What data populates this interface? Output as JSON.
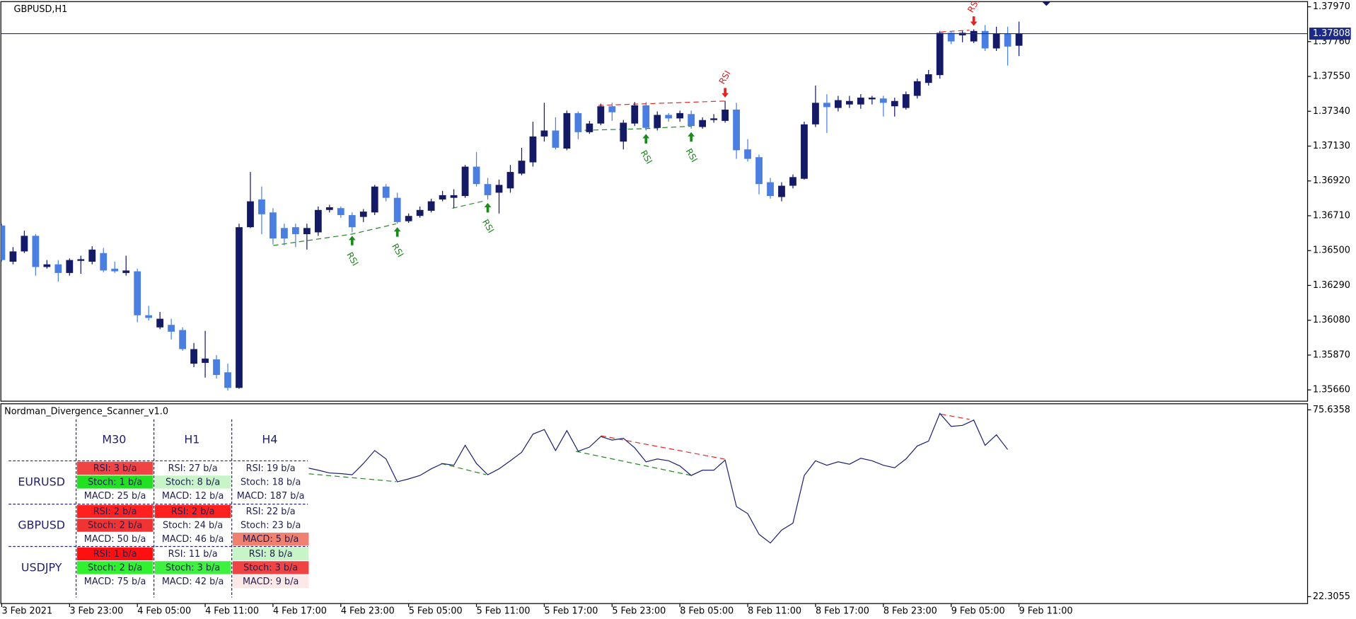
{
  "chart_data": [
    {
      "type": "candlestick",
      "title": "GBPUSD,H1",
      "categories": [
        "3 Feb 2021",
        null,
        null,
        null,
        null,
        null,
        "3 Feb 23:00",
        null,
        null,
        null,
        null,
        null,
        "4 Feb 05:00",
        null,
        null,
        null,
        null,
        null,
        "4 Feb 11:00",
        null,
        null,
        null,
        null,
        null,
        "4 Feb 17:00",
        null,
        null,
        null,
        null,
        null,
        "4 Feb 23:00",
        null,
        null,
        null,
        null,
        null,
        "5 Feb 05:00",
        null,
        null,
        null,
        null,
        null,
        "5 Feb 11:00",
        null,
        null,
        null,
        null,
        null,
        "5 Feb 17:00",
        null,
        null,
        null,
        null,
        null,
        "5 Feb 23:00",
        null,
        null,
        null,
        null,
        null,
        "8 Feb 05:00",
        null,
        null,
        null,
        null,
        null,
        "8 Feb 11:00",
        null,
        null,
        null,
        null,
        null,
        "8 Feb 17:00",
        null,
        null,
        null,
        null,
        null,
        "8 Feb 23:00",
        null,
        null,
        null,
        null,
        null,
        "9 Feb 05:00",
        null,
        null,
        null,
        null,
        null,
        "9 Feb 11:00"
      ],
      "open": [
        1.36651,
        1.36433,
        1.36495,
        1.36589,
        1.36401,
        1.36417,
        1.36365,
        1.36438,
        1.36433,
        1.36485,
        1.36391,
        1.36365,
        1.36375,
        1.3611,
        1.36037,
        1.36052,
        1.36021,
        1.35818,
        1.35823,
        1.35844,
        1.35766,
        1.35672,
        1.36641,
        1.36808,
        1.3673,
        1.36636,
        1.36641,
        1.36599,
        1.3661,
        1.36745,
        1.36756,
        1.36714,
        1.36703,
        1.3673,
        1.36886,
        1.36818,
        1.36677,
        1.36709,
        1.3674,
        1.36808,
        1.36818,
        1.36829,
        1.37006,
        1.36901,
        1.36849,
        1.36875,
        1.36964,
        1.37032,
        1.37188,
        1.37224,
        1.37115,
        1.37329,
        1.37214,
        1.37266,
        1.3737,
        1.37157,
        1.37266,
        1.37376,
        1.3724,
        1.37318,
        1.37297,
        1.37323,
        1.37245,
        1.37287,
        1.37282,
        1.3735,
        1.3711,
        1.37063,
        1.36912,
        1.36823,
        1.36891,
        1.36933,
        1.37261,
        1.37391,
        1.3736,
        1.37381,
        1.37381,
        1.37412,
        1.37417,
        1.3737,
        1.3736,
        1.37433,
        1.37511,
        1.37558,
        1.37813,
        1.37798,
        1.37761,
        1.37824,
        1.37719,
        1.37808,
        1.37735
      ],
      "high": [
        1.36662,
        1.36521,
        1.3662,
        1.36599,
        1.36443,
        1.36443,
        1.36453,
        1.36469,
        1.36526,
        1.36516,
        1.36433,
        1.36469,
        1.36391,
        1.36167,
        1.3613,
        1.36089,
        1.36037,
        1.35943,
        1.36016,
        1.3587,
        1.35818,
        1.36662,
        1.36974,
        1.36886,
        1.36756,
        1.36662,
        1.36662,
        1.36662,
        1.36766,
        1.36776,
        1.36766,
        1.3673,
        1.3675,
        1.36896,
        1.36901,
        1.36849,
        1.36724,
        1.36766,
        1.36813,
        1.3686,
        1.3687,
        1.37016,
        1.37094,
        1.36938,
        1.36928,
        1.37016,
        1.3712,
        1.37277,
        1.37391,
        1.37303,
        1.37344,
        1.37339,
        1.37282,
        1.37386,
        1.37391,
        1.37287,
        1.37396,
        1.37396,
        1.37339,
        1.37329,
        1.37344,
        1.37344,
        1.37303,
        1.37323,
        1.37402,
        1.37391,
        1.37172,
        1.37079,
        1.36938,
        1.36912,
        1.36959,
        1.37277,
        1.37495,
        1.37443,
        1.37433,
        1.37433,
        1.37443,
        1.37433,
        1.37433,
        1.37422,
        1.37459,
        1.37537,
        1.37589,
        1.37824,
        1.37824,
        1.37824,
        1.37834,
        1.3786,
        1.3785,
        1.3785,
        1.37881
      ],
      "low": [
        1.36433,
        1.36417,
        1.36485,
        1.36349,
        1.36391,
        1.36313,
        1.36349,
        1.3636,
        1.36417,
        1.3637,
        1.36365,
        1.36349,
        1.36068,
        1.36078,
        1.36026,
        1.35964,
        1.35896,
        1.35797,
        1.35734,
        1.35729,
        1.35656,
        1.35667,
        1.36636,
        1.36599,
        1.36537,
        1.36532,
        1.36521,
        1.36506,
        1.36589,
        1.3673,
        1.36698,
        1.3661,
        1.36672,
        1.36714,
        1.36797,
        1.36662,
        1.36667,
        1.36698,
        1.3673,
        1.36797,
        1.36756,
        1.36818,
        1.36886,
        1.36808,
        1.36724,
        1.36849,
        1.36954,
        1.37006,
        1.37157,
        1.3711,
        1.37105,
        1.37172,
        1.37204,
        1.37256,
        1.37282,
        1.3711,
        1.37251,
        1.37224,
        1.37224,
        1.37277,
        1.37277,
        1.37235,
        1.37235,
        1.37271,
        1.37271,
        1.37053,
        1.37037,
        1.36839,
        1.36813,
        1.36797,
        1.36875,
        1.36928,
        1.37245,
        1.37209,
        1.37339,
        1.3736,
        1.37355,
        1.37381,
        1.37308,
        1.37308,
        1.3735,
        1.37417,
        1.37495,
        1.37537,
        1.37745,
        1.37756,
        1.37751,
        1.37704,
        1.37704,
        1.37615,
        1.37673
      ],
      "close": [
        1.36443,
        1.36495,
        1.36589,
        1.36401,
        1.36417,
        1.36365,
        1.36443,
        1.36448,
        1.36506,
        1.3638,
        1.36375,
        1.3638,
        1.3611,
        1.36094,
        1.36089,
        1.36011,
        1.35906,
        1.35906,
        1.35849,
        1.3575,
        1.35672,
        1.36641,
        1.36797,
        1.36719,
        1.36573,
        1.36573,
        1.36599,
        1.36636,
        1.36745,
        1.36761,
        1.36714,
        1.36641,
        1.36735,
        1.36886,
        1.36818,
        1.36672,
        1.36709,
        1.36745,
        1.36797,
        1.36834,
        1.36834,
        1.37006,
        1.36901,
        1.36834,
        1.36896,
        1.36974,
        1.37042,
        1.37188,
        1.37224,
        1.3712,
        1.37329,
        1.37214,
        1.37266,
        1.3737,
        1.37334,
        1.37271,
        1.37376,
        1.3724,
        1.37318,
        1.37297,
        1.37329,
        1.37251,
        1.37287,
        1.37297,
        1.3735,
        1.37105,
        1.37053,
        1.36901,
        1.36829,
        1.36891,
        1.36943,
        1.37261,
        1.37391,
        1.37365,
        1.37407,
        1.37402,
        1.37422,
        1.37422,
        1.37391,
        1.37402,
        1.37443,
        1.37521,
        1.37563,
        1.37813,
        1.37761,
        1.37813,
        1.37824,
        1.37719,
        1.37808,
        1.3773,
        1.37808
      ],
      "up_color": "#141a66",
      "down_color": "#4a7ee0",
      "ylim": [
        1.35592,
        1.37996
      ],
      "yticks": [
        {
          "value": 1.3797,
          "label": "1.37970"
        },
        {
          "value": 1.3776,
          "label": "1.37760"
        },
        {
          "value": 1.3755,
          "label": "1.37550"
        },
        {
          "value": 1.3734,
          "label": "1.37340"
        },
        {
          "value": 1.3713,
          "label": "1.37130"
        },
        {
          "value": 1.3692,
          "label": "1.36920"
        },
        {
          "value": 1.3671,
          "label": "1.36710"
        },
        {
          "value": 1.365,
          "label": "1.36500"
        },
        {
          "value": 1.3629,
          "label": "1.36290"
        },
        {
          "value": 1.3608,
          "label": "1.36080"
        },
        {
          "value": 1.3587,
          "label": "1.35870"
        },
        {
          "value": 1.3566,
          "label": "1.35660"
        }
      ],
      "last_price": 1.37808,
      "price_line_color": "#1c2a8c",
      "annotations": [
        "RSI",
        "RSI",
        "RSI",
        "RSI",
        "RSI",
        "RSI",
        "RSI"
      ]
    },
    {
      "type": "line",
      "title": "Nordman_Divergence_Scanner_v1.0",
      "color": "#1c2270",
      "values": [
        null,
        null,
        null,
        null,
        null,
        null,
        null,
        null,
        null,
        null,
        null,
        null,
        null,
        null,
        null,
        null,
        null,
        null,
        null,
        null,
        null,
        null,
        null,
        null,
        null,
        null,
        null,
        59.1,
        58.4,
        57.6,
        57.4,
        57.1,
        60.3,
        64.0,
        61.6,
        55.1,
        55.9,
        56.9,
        58.8,
        60.3,
        59.8,
        65.5,
        60.3,
        57.1,
        58.8,
        61.1,
        63.5,
        68.7,
        70.0,
        64.0,
        69.7,
        63.8,
        65.0,
        68.0,
        67.0,
        67.5,
        64.8,
        60.8,
        61.6,
        61.1,
        59.6,
        56.9,
        58.4,
        58.4,
        61.3,
        48.0,
        46.0,
        40.1,
        37.6,
        41.3,
        43.3,
        56.9,
        61.1,
        59.8,
        60.8,
        60.1,
        61.8,
        61.1,
        59.8,
        59.1,
        61.6,
        65.3,
        66.7,
        74.6,
        70.9,
        71.2,
        72.7,
        65.5,
        68.5,
        64.3,
        null
      ],
      "ylim": [
        20.33,
        77.36
      ],
      "yticks": [
        75.6358,
        22.3055
      ]
    }
  ],
  "scanner": {
    "columns": [
      "M30",
      "H1",
      "H4"
    ],
    "rows": [
      {
        "symbol": "EURUSD",
        "cells": [
          [
            {
              "text": "RSI: 3 b/a",
              "color": "#f04444"
            },
            {
              "text": "Stoch: 1 b/a",
              "color": "#22e022"
            },
            {
              "text": "MACD: 25 b/a",
              "color": "#ffffff"
            }
          ],
          [
            {
              "text": "RSI: 27 b/a",
              "color": "#ffffff"
            },
            {
              "text": "Stoch: 8 b/a",
              "color": "#c8f5c8"
            },
            {
              "text": "MACD: 12 b/a",
              "color": "#ffffff"
            }
          ],
          [
            {
              "text": "RSI: 19 b/a",
              "color": "#ffffff"
            },
            {
              "text": "Stoch: 18 b/a",
              "color": "#ffffff"
            },
            {
              "text": "MACD: 187 b/a",
              "color": "#ffffff"
            }
          ]
        ]
      },
      {
        "symbol": "GBPUSD",
        "cells": [
          [
            {
              "text": "RSI: 2 b/a",
              "color": "#ff2020"
            },
            {
              "text": "Stoch: 2 b/a",
              "color": "#f03434"
            },
            {
              "text": "MACD: 50 b/a",
              "color": "#ffffff"
            }
          ],
          [
            {
              "text": "RSI: 2 b/a",
              "color": "#ff2020"
            },
            {
              "text": "Stoch: 24 b/a",
              "color": "#ffffff"
            },
            {
              "text": "MACD: 46 b/a",
              "color": "#ffffff"
            }
          ],
          [
            {
              "text": "RSI: 22 b/a",
              "color": "#ffffff"
            },
            {
              "text": "Stoch: 23 b/a",
              "color": "#ffffff"
            },
            {
              "text": "MACD: 5 b/a",
              "color": "#f08070"
            }
          ]
        ]
      },
      {
        "symbol": "USDJPY",
        "cells": [
          [
            {
              "text": "RSI: 1 b/a",
              "color": "#ff1010"
            },
            {
              "text": "Stoch: 2 b/a",
              "color": "#30f030"
            },
            {
              "text": "MACD: 75 b/a",
              "color": "#ffffff"
            }
          ],
          [
            {
              "text": "RSI: 11 b/a",
              "color": "#ffffff"
            },
            {
              "text": "Stoch: 3 b/a",
              "color": "#40f040"
            },
            {
              "text": "MACD: 42 b/a",
              "color": "#ffffff"
            }
          ],
          [
            {
              "text": "RSI: 8 b/a",
              "color": "#c8f5c8"
            },
            {
              "text": "Stoch: 3 b/a",
              "color": "#f04444"
            },
            {
              "text": "MACD: 9 b/a",
              "color": "#fde8e8"
            }
          ]
        ]
      }
    ]
  }
}
